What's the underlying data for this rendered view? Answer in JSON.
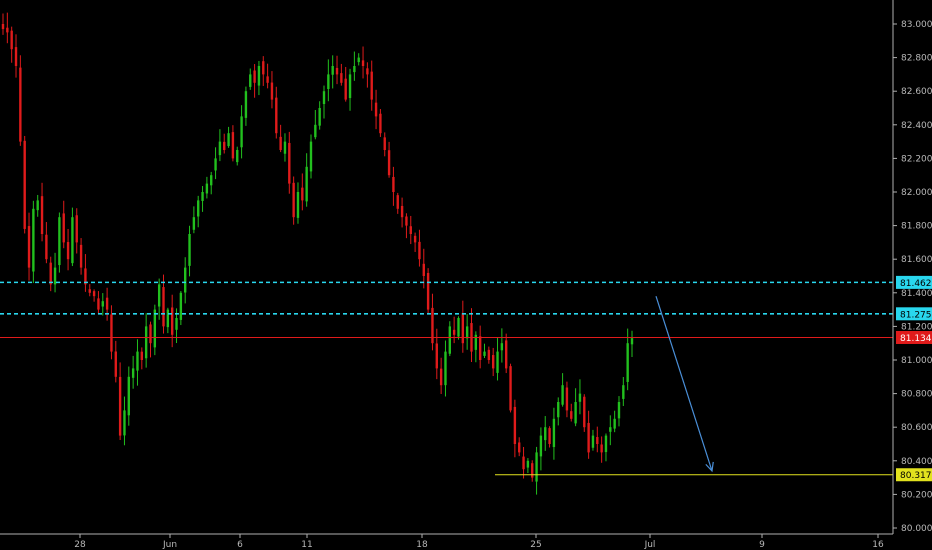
{
  "chart_data": {
    "type": "candlestick",
    "colors": {
      "background": "#000000",
      "up": "#22c01e",
      "down": "#e01b1b",
      "axis": "#b0b0b0",
      "resistance": "#29d7ee",
      "support": "#e2e21e",
      "last": "#e01b1b",
      "projection": "#4a8fd8"
    },
    "y_range": [
      80.0,
      83.05
    ],
    "y_ticks": [
      "83.000",
      "82.800",
      "82.600",
      "82.400",
      "82.200",
      "82.000",
      "81.800",
      "81.600",
      "81.400",
      "81.200",
      "81.000",
      "80.800",
      "80.600",
      "80.400",
      "80.200",
      "80.000"
    ],
    "x_ticks": [
      "28",
      "Jun",
      "6",
      "11",
      "18",
      "25",
      "Jul",
      "9",
      "16"
    ],
    "levels": [
      {
        "name": "resistance-1",
        "value": "81.462",
        "color": "#29d7ee",
        "style": "dashed"
      },
      {
        "name": "resistance-2",
        "value": "81.275",
        "color": "#29d7ee",
        "style": "dashed"
      },
      {
        "name": "last-price",
        "value": "81.134",
        "color": "#e01b1b",
        "style": "solid"
      },
      {
        "name": "support",
        "value": "80.317",
        "color": "#e2e21e",
        "style": "solid"
      }
    ],
    "projection": {
      "from": [
        81.38
      ],
      "to": [
        80.34
      ]
    },
    "path": [
      82.97,
      82.95,
      82.85,
      82.75,
      82.3,
      81.78,
      81.55,
      81.9,
      81.95,
      81.75,
      81.6,
      81.45,
      81.55,
      81.85,
      81.7,
      81.6,
      81.85,
      81.7,
      81.55,
      81.45,
      81.4,
      81.38,
      81.3,
      81.35,
      81.3,
      81.05,
      80.9,
      80.55,
      80.7,
      80.9,
      80.95,
      81.05,
      81.0,
      81.2,
      81.1,
      81.3,
      81.45,
      81.2,
      81.3,
      81.15,
      81.25,
      81.4,
      81.55,
      81.75,
      81.85,
      81.95,
      82.0,
      82.05,
      82.1,
      82.2,
      82.3,
      82.25,
      82.35,
      82.2,
      82.25,
      82.45,
      82.6,
      82.7,
      82.65,
      82.75,
      82.7,
      82.65,
      82.55,
      82.35,
      82.25,
      82.3,
      82.05,
      81.85,
      82.0,
      81.95,
      82.15,
      82.3,
      82.4,
      82.5,
      82.6,
      82.7,
      82.75,
      82.7,
      82.65,
      82.55,
      82.7,
      82.75,
      82.8,
      82.75,
      82.7,
      82.55,
      82.45,
      82.35,
      82.25,
      82.1,
      82.0,
      81.9,
      81.85,
      81.8,
      81.75,
      81.7,
      81.6,
      81.5,
      81.3,
      81.1,
      80.95,
      80.85,
      81.05,
      81.2,
      81.15,
      81.25,
      81.1,
      81.2,
      81.05,
      81.15,
      81.0,
      81.05,
      81.0,
      80.95,
      81.05,
      81.1,
      80.95,
      80.7,
      80.5,
      80.45,
      80.35,
      80.4,
      80.3,
      80.45,
      80.55,
      80.6,
      80.5,
      80.65,
      80.75,
      80.85,
      80.7,
      80.65,
      80.75,
      80.8,
      80.6,
      80.45,
      80.55,
      80.5,
      80.45,
      80.55,
      80.6,
      80.65,
      80.75,
      80.85,
      81.1,
      81.13
    ]
  }
}
